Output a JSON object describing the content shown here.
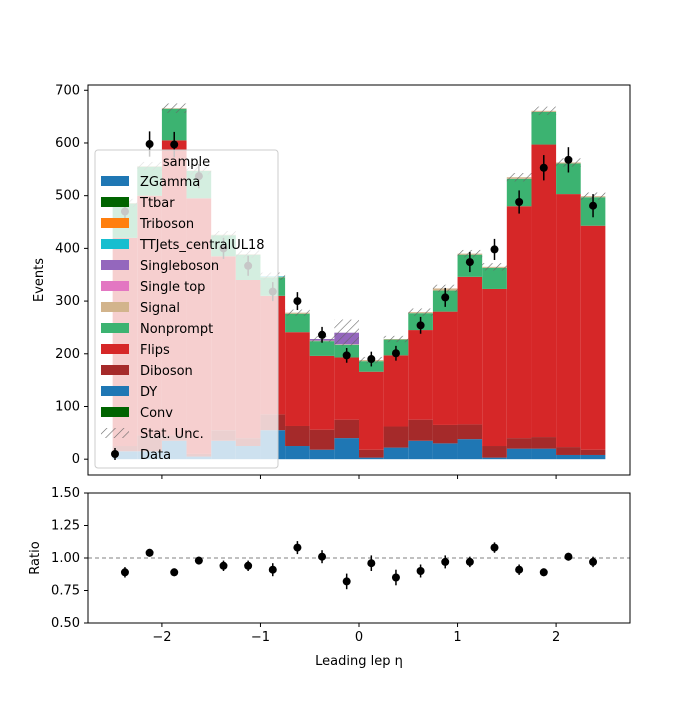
{
  "chart_data": {
    "type": "bar",
    "stacked": true,
    "bin_edges": [
      -2.5,
      -2.25,
      -2.0,
      -1.75,
      -1.5,
      -1.25,
      -1.0,
      -0.75,
      -0.5,
      -0.25,
      0.0,
      0.25,
      0.5,
      0.75,
      1.0,
      1.25,
      1.5,
      1.75,
      2.0,
      2.25,
      2.5
    ],
    "series": [
      {
        "name": "DY",
        "color": "#1f77b4",
        "values": [
          15,
          15,
          35,
          5,
          35,
          25,
          55,
          25,
          18,
          40,
          3,
          22,
          35,
          30,
          38,
          3,
          20,
          20,
          8,
          8
        ]
      },
      {
        "name": "Diboson",
        "color": "#a52a2a",
        "values": [
          10,
          30,
          10,
          5,
          20,
          15,
          30,
          38,
          38,
          35,
          15,
          40,
          40,
          35,
          28,
          22,
          20,
          22,
          15,
          10
        ]
      },
      {
        "name": "Flips",
        "color": "#d62728",
        "values": [
          395,
          455,
          560,
          485,
          330,
          300,
          225,
          178,
          140,
          118,
          148,
          135,
          170,
          215,
          280,
          298,
          440,
          555,
          480,
          425
        ]
      },
      {
        "name": "Nonprompt",
        "color": "#3cb371",
        "values": [
          65,
          55,
          60,
          52,
          40,
          48,
          35,
          35,
          28,
          24,
          20,
          30,
          32,
          40,
          42,
          40,
          52,
          62,
          58,
          54
        ]
      },
      {
        "name": "Signal",
        "color": "#d2b48c",
        "values": [
          1,
          1,
          1,
          1,
          1,
          1,
          1,
          2,
          1,
          1,
          2,
          1,
          2,
          4,
          2,
          2,
          3,
          2,
          2,
          2
        ]
      },
      {
        "name": "Single top",
        "color": "#e377c2",
        "values": [
          0,
          0,
          0,
          0,
          0,
          0,
          0,
          0,
          0,
          0,
          0,
          0,
          0,
          0,
          0,
          0,
          0,
          0,
          0,
          0
        ]
      },
      {
        "name": "Singleboson",
        "color": "#9467bd",
        "values": [
          0,
          0,
          0,
          0,
          0,
          0,
          0,
          0,
          3,
          22,
          0,
          0,
          0,
          0,
          0,
          0,
          0,
          0,
          0,
          0
        ]
      },
      {
        "name": "TTJets_centralUL18",
        "color": "#17becf",
        "values": [
          0,
          0,
          0,
          0,
          0,
          0,
          1,
          0,
          0,
          0,
          0,
          0,
          0,
          0,
          0,
          0,
          0,
          0,
          0,
          0
        ]
      },
      {
        "name": "Triboson",
        "color": "#ff7f0e",
        "values": [
          0,
          0,
          0,
          0,
          0,
          0,
          0,
          0,
          0,
          0,
          0,
          0,
          0,
          0,
          0,
          0,
          0,
          0,
          0,
          0
        ]
      },
      {
        "name": "Ttbar",
        "color": "#006400",
        "values": [
          0,
          0,
          0,
          0,
          0,
          0,
          0,
          0,
          0,
          0,
          0,
          0,
          0,
          0,
          0,
          0,
          0,
          0,
          0,
          0
        ]
      },
      {
        "name": "ZGamma",
        "color": "#1f77b4",
        "values": [
          0,
          0,
          0,
          0,
          0,
          0,
          0,
          0,
          0,
          0,
          0,
          0,
          0,
          0,
          0,
          0,
          0,
          0,
          0,
          0
        ]
      }
    ],
    "stat_unc": [
      8,
      8,
      9,
      8,
      7,
      7,
      7,
      6,
      6,
      25,
      6,
      6,
      7,
      7,
      7,
      7,
      8,
      8,
      8,
      7
    ],
    "data": {
      "name": "Data",
      "x": [
        -2.375,
        -2.125,
        -1.875,
        -1.625,
        -1.375,
        -1.125,
        -0.875,
        -0.625,
        -0.375,
        -0.125,
        0.125,
        0.375,
        0.625,
        0.875,
        1.125,
        1.375,
        1.625,
        1.875,
        2.125,
        2.375
      ],
      "y": [
        470,
        598,
        597,
        537,
        400,
        367,
        318,
        300,
        236,
        197,
        190,
        201,
        254,
        307,
        374,
        398,
        488,
        553,
        568,
        481
      ],
      "err": [
        22,
        24,
        24,
        23,
        20,
        19,
        18,
        17,
        15,
        14,
        14,
        14,
        16,
        18,
        19,
        20,
        22,
        24,
        24,
        22
      ]
    },
    "ratio": {
      "y": [
        0.89,
        1.04,
        0.89,
        0.98,
        0.94,
        0.94,
        0.91,
        1.08,
        1.01,
        0.82,
        0.96,
        0.85,
        0.9,
        0.97,
        0.97,
        1.08,
        0.91,
        0.89,
        1.01,
        0.97
      ],
      "err": [
        0.04,
        0.03,
        0.03,
        0.03,
        0.04,
        0.04,
        0.05,
        0.05,
        0.05,
        0.06,
        0.06,
        0.06,
        0.05,
        0.05,
        0.04,
        0.04,
        0.04,
        0.03,
        0.03,
        0.04
      ],
      "reference": 1.0
    },
    "xlabel": "Leading lep η",
    "ylabel": "Events",
    "ratio_ylabel": "Ratio",
    "xlim": [
      -2.75,
      2.75
    ],
    "ylim": [
      -30,
      710
    ],
    "ratio_ylim": [
      0.5,
      1.5
    ],
    "xticks": [
      -2,
      -1,
      0,
      1,
      2
    ],
    "xtick_labels": [
      "−2",
      "−1",
      "0",
      "1",
      "2"
    ],
    "yticks": [
      0,
      100,
      200,
      300,
      400,
      500,
      600,
      700
    ],
    "ratio_yticks": [
      0.5,
      0.75,
      1.0,
      1.25,
      1.5
    ],
    "ratio_ytick_labels": [
      "0.50",
      "0.75",
      "1.00",
      "1.25",
      "1.50"
    ],
    "grid": false,
    "legend": {
      "title": "sample",
      "placement": "upper-left",
      "entries": [
        {
          "label": "ZGamma",
          "color": "#1f77b4",
          "kind": "patch"
        },
        {
          "label": "Ttbar",
          "color": "#006400",
          "kind": "patch"
        },
        {
          "label": "Triboson",
          "color": "#ff7f0e",
          "kind": "patch"
        },
        {
          "label": "TTJets_centralUL18",
          "color": "#17becf",
          "kind": "patch"
        },
        {
          "label": "Singleboson",
          "color": "#9467bd",
          "kind": "patch"
        },
        {
          "label": "Single top",
          "color": "#e377c2",
          "kind": "patch"
        },
        {
          "label": "Signal",
          "color": "#d2b48c",
          "kind": "patch"
        },
        {
          "label": "Nonprompt",
          "color": "#3cb371",
          "kind": "patch"
        },
        {
          "label": "Flips",
          "color": "#d62728",
          "kind": "patch"
        },
        {
          "label": "Diboson",
          "color": "#a52a2a",
          "kind": "patch"
        },
        {
          "label": "DY",
          "color": "#1f77b4",
          "kind": "patch"
        },
        {
          "label": "Conv",
          "color": "#006400",
          "kind": "patch"
        },
        {
          "label": "Stat. Unc.",
          "color": "#777777",
          "kind": "hatch"
        },
        {
          "label": "Data",
          "color": "#000000",
          "kind": "marker"
        }
      ]
    }
  }
}
